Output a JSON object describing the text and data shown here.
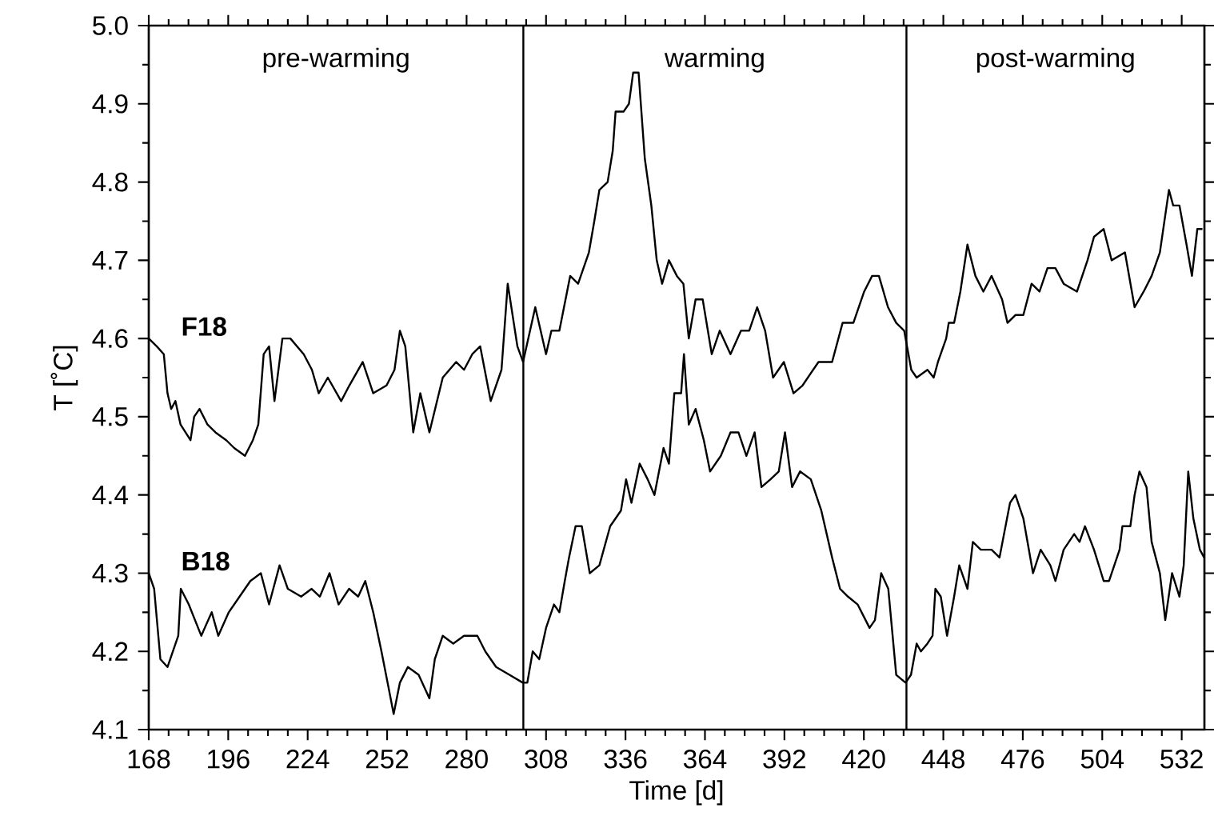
{
  "chart_data": {
    "type": "line",
    "xlabel": "Time [d]",
    "ylabel": "T [˚C]",
    "line_style": "solid",
    "legend": "left",
    "xlim": [
      168,
      540
    ],
    "ylim": [
      4.1,
      5.0
    ],
    "xticks": [
      168,
      196,
      224,
      252,
      280,
      308,
      336,
      364,
      392,
      420,
      448,
      476,
      504,
      532
    ],
    "yticks": [
      4.1,
      4.2,
      4.3,
      4.4,
      4.5,
      4.6,
      4.7,
      4.8,
      4.9,
      {
        "value": 5.0,
        "label": "5.0"
      }
    ],
    "ref_lines": [
      {
        "axis": "x",
        "value": 300
      },
      {
        "axis": "x",
        "value": 435
      }
    ],
    "annotations": [
      "pre-warming",
      "warming",
      "post-warming"
    ],
    "series": [
      {
        "name": "F18",
        "color": "#000000",
        "x": [
          168,
          170.8,
          173.3,
          174.6,
          175.9,
          177.4,
          179.2,
          182.7,
          184,
          185.9,
          188.7,
          191.5,
          195.3,
          198.1,
          201.9,
          204.7,
          206.6,
          208.5,
          210.4,
          212.3,
          215.1,
          217.9,
          222.6,
          225.5,
          227.9,
          231.1,
          235.8,
          238.7,
          243.4,
          247.1,
          251.8,
          254.6,
          256.5,
          258.4,
          261.2,
          263.7,
          266.9,
          271.6,
          276.3,
          279.1,
          282,
          284.8,
          288.5,
          292.3,
          294.5,
          297.9,
          299.9,
          304.2,
          308,
          309.9,
          312.7,
          316.5,
          319.3,
          323.1,
          325,
          326.8,
          329.7,
          331.5,
          332.5,
          335.3,
          337.2,
          338.7,
          340.6,
          342.8,
          345.1,
          347,
          348.9,
          351.3,
          354.1,
          356.4,
          358.3,
          360.7,
          363.2,
          366.4,
          369.2,
          373,
          376.7,
          379.6,
          382.4,
          385.2,
          388,
          391.8,
          395.2,
          398.4,
          404,
          408.8,
          412.5,
          416.3,
          420.1,
          422.9,
          425.3,
          428.5,
          431.4,
          434.2,
          436.7,
          438.6,
          442.4,
          444.6,
          446.1,
          449,
          449.9,
          451.8,
          454,
          456.5,
          459.3,
          462.1,
          465,
          468.7,
          470.6,
          473.4,
          476.2,
          479.1,
          481.9,
          484.7,
          487.5,
          490.4,
          495.1,
          498.8,
          501.1,
          504.5,
          507.3,
          512,
          515.4,
          518.6,
          521.4,
          524.3,
          527.5,
          529,
          531.2,
          533.7,
          535.6,
          537.5,
          539.3
        ],
        "values": [
          4.6,
          4.59,
          4.58,
          4.53,
          4.51,
          4.52,
          4.49,
          4.47,
          4.5,
          4.51,
          4.49,
          4.48,
          4.47,
          4.46,
          4.45,
          4.47,
          4.49,
          4.58,
          4.59,
          4.52,
          4.6,
          4.6,
          4.58,
          4.56,
          4.53,
          4.55,
          4.52,
          4.54,
          4.57,
          4.53,
          4.54,
          4.56,
          4.61,
          4.59,
          4.48,
          4.53,
          4.48,
          4.55,
          4.57,
          4.56,
          4.58,
          4.59,
          4.52,
          4.56,
          4.67,
          4.59,
          4.57,
          4.64,
          4.58,
          4.61,
          4.61,
          4.68,
          4.67,
          4.71,
          4.75,
          4.79,
          4.8,
          4.84,
          4.89,
          4.89,
          4.9,
          4.94,
          4.94,
          4.83,
          4.77,
          4.7,
          4.67,
          4.7,
          4.68,
          4.67,
          4.6,
          4.65,
          4.65,
          4.58,
          4.61,
          4.58,
          4.61,
          4.61,
          4.64,
          4.61,
          4.55,
          4.57,
          4.53,
          4.54,
          4.57,
          4.57,
          4.62,
          4.62,
          4.66,
          4.68,
          4.68,
          4.64,
          4.62,
          4.61,
          4.56,
          4.55,
          4.56,
          4.55,
          4.57,
          4.6,
          4.62,
          4.62,
          4.66,
          4.72,
          4.68,
          4.66,
          4.68,
          4.65,
          4.62,
          4.63,
          4.63,
          4.67,
          4.66,
          4.69,
          4.69,
          4.67,
          4.66,
          4.7,
          4.73,
          4.74,
          4.7,
          4.71,
          4.64,
          4.66,
          4.68,
          4.71,
          4.79,
          4.77,
          4.77,
          4.72,
          4.68,
          4.74,
          4.74
        ]
      },
      {
        "name": "B18",
        "color": "#000000",
        "x": [
          168,
          169.9,
          172.1,
          174.6,
          176.5,
          178.4,
          179.3,
          182.1,
          186.5,
          190.2,
          192.5,
          196.2,
          200,
          203.8,
          207.5,
          210.4,
          214.1,
          217,
          221.7,
          225.4,
          228.3,
          231.7,
          234.9,
          238.6,
          241.8,
          244.3,
          247.1,
          250,
          252.7,
          254.3,
          256.5,
          259.3,
          263.1,
          266.9,
          268.8,
          271.6,
          275.3,
          279.1,
          283.8,
          286.6,
          290.4,
          295.1,
          299.8,
          301.4,
          303.3,
          305.6,
          308,
          310.8,
          312.7,
          314.6,
          316.1,
          318.4,
          320.6,
          323.4,
          326.8,
          330.6,
          334.4,
          336.2,
          338.1,
          341,
          343.8,
          346.2,
          349.4,
          351.3,
          353.2,
          355.6,
          356.6,
          358.3,
          360.7,
          363.6,
          365.8,
          369.6,
          373,
          375.8,
          378.6,
          381.5,
          383.9,
          387.1,
          390,
          392.2,
          394.7,
          397.5,
          401.3,
          405,
          408.8,
          411.6,
          414.4,
          417.8,
          422,
          423.9,
          426.1,
          428.6,
          431.4,
          434.7,
          436.6,
          438.6,
          440.1,
          442.4,
          444.2,
          445.2,
          447.1,
          449.3,
          451.8,
          453.6,
          456.5,
          458.4,
          461.2,
          465,
          467.8,
          471.5,
          473.4,
          476.2,
          479.6,
          482.3,
          485.7,
          487.5,
          490.4,
          494.1,
          496,
          497.9,
          501.1,
          504.5,
          506.4,
          510.1,
          511.1,
          513.9,
          515.4,
          517.1,
          519.6,
          521.4,
          524.3,
          526.2,
          528.6,
          531.2,
          532.7,
          534.3,
          536.1,
          538.4,
          539.9
        ],
        "values": [
          4.3,
          4.28,
          4.19,
          4.18,
          4.2,
          4.22,
          4.28,
          4.26,
          4.22,
          4.25,
          4.22,
          4.25,
          4.27,
          4.29,
          4.3,
          4.26,
          4.31,
          4.28,
          4.27,
          4.28,
          4.27,
          4.3,
          4.26,
          4.28,
          4.27,
          4.29,
          4.25,
          4.2,
          4.15,
          4.12,
          4.16,
          4.18,
          4.17,
          4.14,
          4.19,
          4.22,
          4.21,
          4.22,
          4.22,
          4.2,
          4.18,
          4.17,
          4.16,
          4.16,
          4.2,
          4.19,
          4.23,
          4.26,
          4.25,
          4.29,
          4.32,
          4.36,
          4.36,
          4.3,
          4.31,
          4.36,
          4.38,
          4.42,
          4.39,
          4.44,
          4.42,
          4.4,
          4.46,
          4.44,
          4.53,
          4.53,
          4.58,
          4.49,
          4.51,
          4.47,
          4.43,
          4.45,
          4.48,
          4.48,
          4.45,
          4.48,
          4.41,
          4.42,
          4.43,
          4.48,
          4.41,
          4.43,
          4.42,
          4.38,
          4.32,
          4.28,
          4.27,
          4.26,
          4.23,
          4.24,
          4.3,
          4.28,
          4.17,
          4.16,
          4.17,
          4.21,
          4.2,
          4.21,
          4.22,
          4.28,
          4.27,
          4.22,
          4.27,
          4.31,
          4.28,
          4.34,
          4.33,
          4.33,
          4.32,
          4.39,
          4.4,
          4.37,
          4.3,
          4.33,
          4.31,
          4.29,
          4.33,
          4.35,
          4.34,
          4.36,
          4.33,
          4.29,
          4.29,
          4.33,
          4.36,
          4.36,
          4.4,
          4.43,
          4.41,
          4.34,
          4.3,
          4.24,
          4.3,
          4.27,
          4.31,
          4.43,
          4.37,
          4.33,
          4.32
        ]
      }
    ]
  }
}
